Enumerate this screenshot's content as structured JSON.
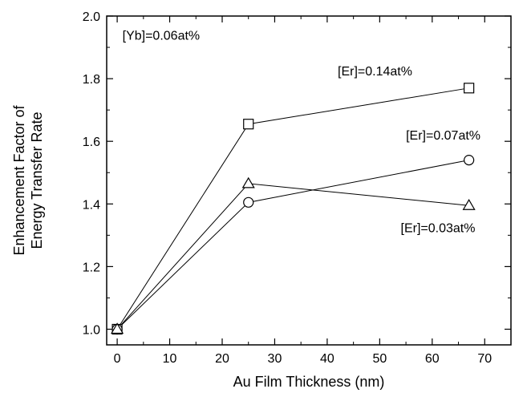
{
  "chart_data": {
    "type": "line",
    "title": "",
    "xlabel": "Au Film Thickness (nm)",
    "ylabel_lines": [
      "Enhancement Factor of",
      "Energy Transfer Rate"
    ],
    "xlim": [
      -2,
      75
    ],
    "ylim": [
      0.95,
      2.0
    ],
    "x_ticks": [
      0,
      10,
      20,
      30,
      40,
      50,
      60,
      70
    ],
    "y_ticks": [
      1.0,
      1.2,
      1.4,
      1.6,
      1.8,
      2.0
    ],
    "y_tick_labels": [
      "1.0",
      "1.2",
      "1.4",
      "1.6",
      "1.8",
      "2.0"
    ],
    "grid": false,
    "x": [
      0,
      25,
      67
    ],
    "series": [
      {
        "name": "[Er]=0.14at%",
        "marker": "square",
        "values": [
          1.0,
          1.655,
          1.77
        ]
      },
      {
        "name": "[Er]=0.07at%",
        "marker": "circle",
        "values": [
          1.0,
          1.405,
          1.54
        ]
      },
      {
        "name": "[Er]=0.03at%",
        "marker": "triangle",
        "values": [
          1.0,
          1.465,
          1.395
        ]
      }
    ],
    "annotations": [
      {
        "text": "[Yb]=0.06at%",
        "x": 1,
        "y": 1.925
      },
      {
        "text": "[Er]=0.14at%",
        "x": 42,
        "y": 1.81
      },
      {
        "text": "[Er]=0.07at%",
        "x": 55,
        "y": 1.605
      },
      {
        "text": "[Er]=0.03at%",
        "x": 54,
        "y": 1.31
      }
    ]
  }
}
